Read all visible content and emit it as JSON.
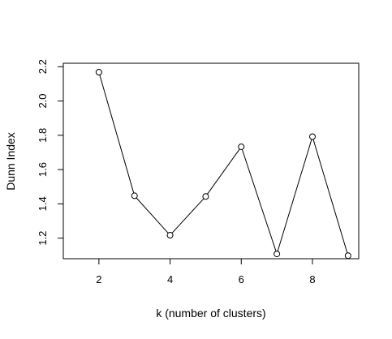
{
  "chart_data": {
    "type": "line",
    "title": "",
    "xlabel": "k (number of clusters)",
    "ylabel": "Dunn Index",
    "xlim": [
      1,
      9.3
    ],
    "ylim": [
      1.08,
      2.22
    ],
    "xticks": [
      2,
      4,
      6,
      8
    ],
    "yticks": [
      1.2,
      1.4,
      1.6,
      1.8,
      2.0,
      2.2
    ],
    "ytick_labels": [
      "1.2",
      "1.4",
      "1.6",
      "1.8",
      "2.0",
      "2.2"
    ],
    "grid": false,
    "series": [
      {
        "x": [
          2,
          3,
          4,
          5,
          6,
          7,
          8,
          9
        ],
        "y": [
          2.168,
          1.447,
          1.217,
          1.443,
          1.733,
          1.108,
          1.792,
          1.098
        ],
        "marker": "open-circle",
        "line": true
      }
    ]
  }
}
